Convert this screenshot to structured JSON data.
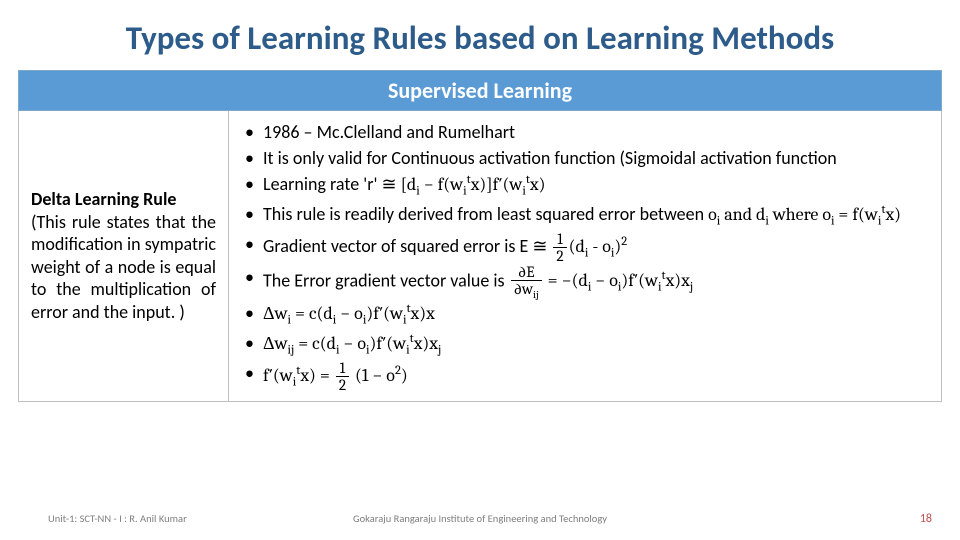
{
  "title": "Types of Learning Rules based on Learning Methods",
  "table": {
    "header": "Supervised Learning",
    "left": {
      "name": "Delta Learning Rule",
      "desc": "(This rule states that the modification in sympatric weight of a node is equal to the multiplication of error and the input. )"
    },
    "bullets": {
      "b1": "1986 – Mc.Clelland and Rumelhart",
      "b2": "It is only valid for Continuous activation function (Sigmoidal activation function",
      "b3_pre": "Learning rate 'r' ",
      "b4_pre": "This rule is readily derived from least squared error between ",
      "b5_pre": "Gradient vector of squared error is E",
      "b6_pre": "The Error gradient vector value is "
    }
  },
  "footer": {
    "left": "Unit-1: SCT-NN - I : R. Anil Kumar",
    "center": "Gokaraju Rangaraju Institute of Engineering and Technology",
    "page": "18"
  },
  "colors": {
    "title_color": "#2e5c8a",
    "header_bg": "#5b9bd5",
    "border": "#bfbfbf",
    "footer_gray": "#7f7f7f",
    "page_color": "#c0504d"
  }
}
